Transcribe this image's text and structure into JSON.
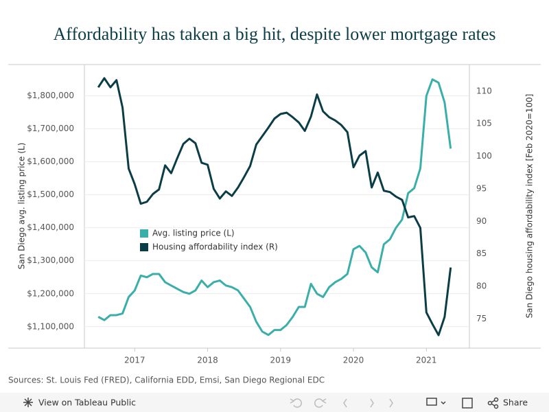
{
  "chart_data": {
    "type": "line",
    "title": "Affordability has taken a big hit, despite lower mortgage rates",
    "ylabel": "San Diego avg. listing price (L)",
    "y2label": "San Diego housing affordability index [Feb 2020=100]",
    "source": "Sources: St. Louis Fed (FRED), California EDD, Emsi, San Diego Regional EDC",
    "x": [
      2016.5,
      2016.583,
      2016.667,
      2016.75,
      2016.833,
      2016.917,
      2017,
      2017.083,
      2017.167,
      2017.25,
      2017.333,
      2017.417,
      2017.5,
      2017.583,
      2017.667,
      2017.75,
      2017.833,
      2017.917,
      2018,
      2018.083,
      2018.167,
      2018.25,
      2018.333,
      2018.417,
      2018.5,
      2018.583,
      2018.667,
      2018.75,
      2018.833,
      2018.917,
      2019,
      2019.083,
      2019.167,
      2019.25,
      2019.333,
      2019.417,
      2019.5,
      2019.583,
      2019.667,
      2019.75,
      2019.833,
      2019.917,
      2020,
      2020.083,
      2020.167,
      2020.25,
      2020.333,
      2020.417,
      2020.5,
      2020.583,
      2020.667,
      2020.75,
      2020.833,
      2020.917,
      2021,
      2021.083,
      2021.167,
      2021.25,
      2021.333
    ],
    "series": [
      {
        "name": "Avg. listing price (L)",
        "color": "#3aafa9",
        "axis": "y",
        "values": [
          1130000,
          1120000,
          1135000,
          1135000,
          1140000,
          1190000,
          1210000,
          1255000,
          1250000,
          1260000,
          1260000,
          1235000,
          1225000,
          1215000,
          1205000,
          1200000,
          1210000,
          1240000,
          1220000,
          1235000,
          1240000,
          1225000,
          1220000,
          1210000,
          1185000,
          1160000,
          1115000,
          1085000,
          1075000,
          1090000,
          1090000,
          1105000,
          1130000,
          1160000,
          1160000,
          1230000,
          1200000,
          1190000,
          1220000,
          1235000,
          1245000,
          1260000,
          1335000,
          1345000,
          1325000,
          1280000,
          1265000,
          1350000,
          1365000,
          1400000,
          1425000,
          1505000,
          1520000,
          1580000,
          1800000,
          1850000,
          1840000,
          1780000,
          1640000
        ]
      },
      {
        "name": "Housing affordability index (R)",
        "color": "#0b3d46",
        "axis": "y2",
        "values": [
          110.6,
          112.0,
          110.6,
          111.7,
          107.5,
          98.1,
          95.7,
          92.7,
          93.0,
          94.2,
          94.9,
          98.6,
          97.4,
          99.7,
          101.9,
          102.7,
          102.0,
          99.0,
          98.7,
          95.0,
          93.5,
          94.6,
          93.9,
          95.2,
          96.8,
          98.5,
          101.8,
          103.1,
          104.4,
          105.8,
          106.5,
          106.7,
          106.0,
          105.2,
          103.9,
          106.1,
          109.5,
          106.9,
          106.0,
          105.5,
          104.8,
          103.7,
          98.3,
          100.1,
          100.8,
          95.2,
          97.5,
          94.7,
          94.5,
          93.8,
          93.3,
          90.6,
          90.8,
          89.0,
          76.0,
          74.2,
          72.5,
          75.3,
          82.9
        ]
      }
    ],
    "xlim": [
      2016.31,
      2021.59
    ],
    "xticks": [
      2017,
      2018,
      2019,
      2020,
      2021
    ],
    "ylim": [
      1035000,
      1895000
    ],
    "yticks": [
      {
        "value": 1100000,
        "label": "$1,100,000"
      },
      {
        "value": 1200000,
        "label": "$1,200,000"
      },
      {
        "value": 1300000,
        "label": "$1,300,000"
      },
      {
        "value": 1400000,
        "label": "$1,400,000"
      },
      {
        "value": 1500000,
        "label": "$1,500,000"
      },
      {
        "value": 1600000,
        "label": "$1,600,000"
      },
      {
        "value": 1700000,
        "label": "$1,700,000"
      },
      {
        "value": 1800000,
        "label": "$1,800,000"
      }
    ],
    "y2lim": [
      70.5,
      114.1
    ],
    "y2ticks": [
      75,
      80,
      85,
      90,
      95,
      100,
      105,
      110
    ],
    "grid": true
  },
  "toolbar": {
    "view": "View on Tableau Public",
    "share": "Share"
  }
}
